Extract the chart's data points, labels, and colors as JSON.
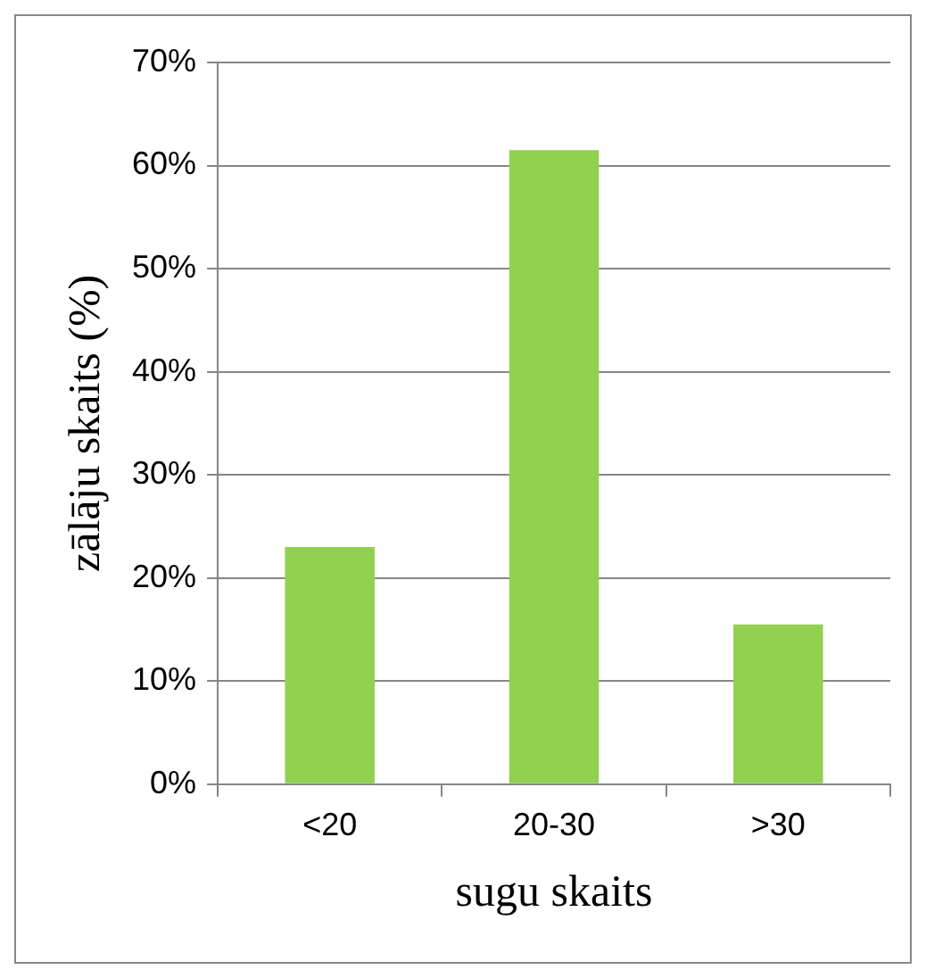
{
  "chart_data": {
    "type": "bar",
    "xlabel": "sugu skaits",
    "ylabel": "zālāju skaits (%)",
    "categories": [
      "<20",
      "20-30",
      ">30"
    ],
    "values": [
      23,
      61.5,
      15.5
    ],
    "color": "#92d050",
    "ylim": [
      0,
      70
    ],
    "yticks": [
      {
        "value": 0,
        "label": "0%"
      },
      {
        "value": 10,
        "label": "10%"
      },
      {
        "value": 20,
        "label": "20%"
      },
      {
        "value": 30,
        "label": "30%"
      },
      {
        "value": 40,
        "label": "40%"
      },
      {
        "value": 50,
        "label": "50%"
      },
      {
        "value": 60,
        "label": "60%"
      },
      {
        "value": 70,
        "label": "70%"
      }
    ],
    "grid": "y",
    "legend": false
  }
}
